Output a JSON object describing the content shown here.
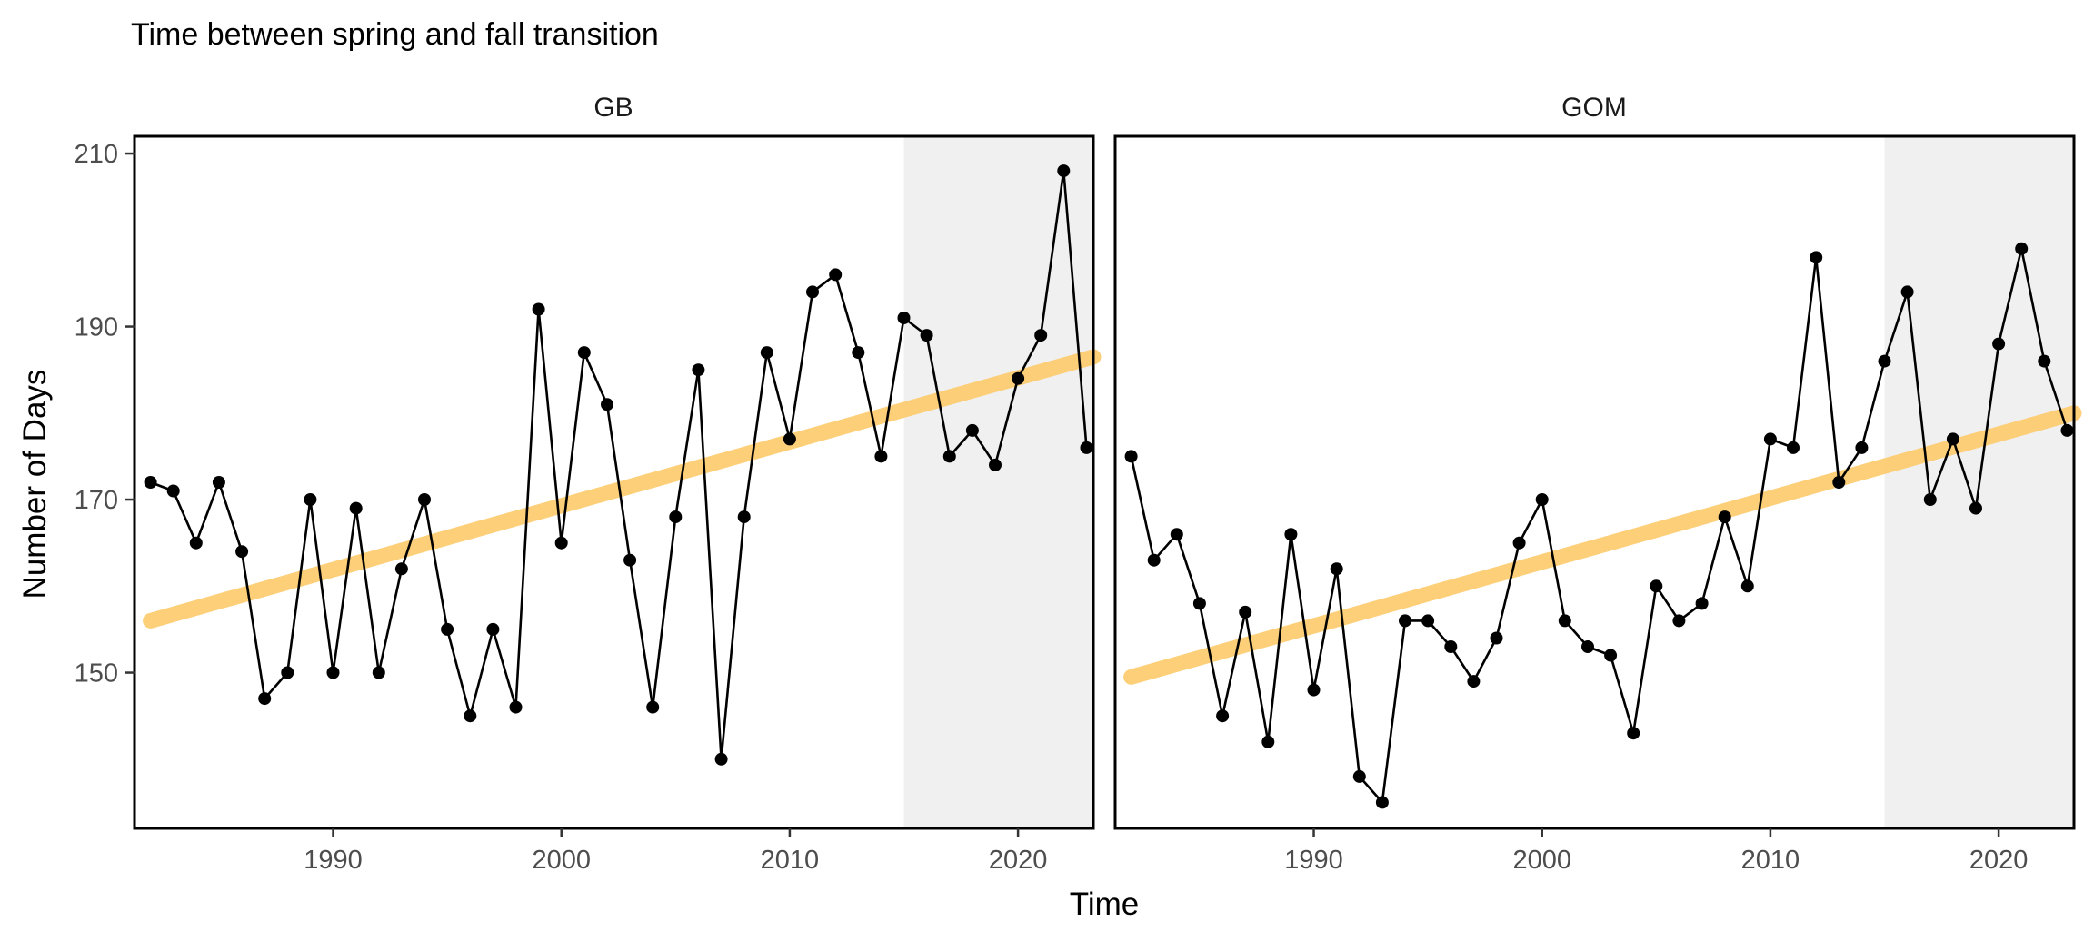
{
  "chart_data": {
    "type": "line",
    "title": "Time between spring and fall transition",
    "xlabel": "Time",
    "ylabel": "Number of Days",
    "xlim": [
      1981.3,
      2023.3
    ],
    "ylim": [
      132,
      212
    ],
    "x_ticks": [
      "1990",
      "2000",
      "2010",
      "2020"
    ],
    "y_ticks": [
      "150",
      "170",
      "190",
      "210"
    ],
    "grid": false,
    "shaded_period": [
      2015,
      2023.3
    ],
    "colors": {
      "line": "#000000",
      "trend": "#fdca6a",
      "shade": "#f0f0f0",
      "border": "#000000"
    },
    "panels": [
      {
        "strip_label": "GB",
        "x": [
          1982,
          1983,
          1984,
          1985,
          1986,
          1987,
          1988,
          1989,
          1990,
          1991,
          1992,
          1993,
          1994,
          1995,
          1996,
          1997,
          1998,
          1999,
          2000,
          2001,
          2002,
          2003,
          2004,
          2005,
          2006,
          2007,
          2008,
          2009,
          2010,
          2011,
          2012,
          2013,
          2014,
          2015,
          2016,
          2017,
          2018,
          2019,
          2020,
          2021,
          2022,
          2023
        ],
        "values": [
          172,
          171,
          165,
          172,
          164,
          147,
          150,
          170,
          150,
          169,
          150,
          162,
          170,
          155,
          145,
          155,
          146,
          192,
          165,
          187,
          181,
          163,
          146,
          168,
          185,
          140,
          168,
          187,
          177,
          194,
          196,
          187,
          175,
          191,
          189,
          175,
          178,
          174,
          184,
          189,
          208,
          176
        ],
        "trend": {
          "x": [
            1982,
            2023.3
          ],
          "y": [
            156,
            186.5
          ]
        }
      },
      {
        "strip_label": "GOM",
        "x": [
          1982,
          1983,
          1984,
          1985,
          1986,
          1987,
          1988,
          1989,
          1990,
          1991,
          1992,
          1993,
          1994,
          1995,
          1996,
          1997,
          1998,
          1999,
          2000,
          2001,
          2002,
          2003,
          2004,
          2005,
          2006,
          2007,
          2008,
          2009,
          2010,
          2011,
          2012,
          2013,
          2014,
          2015,
          2016,
          2017,
          2018,
          2019,
          2020,
          2021,
          2022,
          2023
        ],
        "values": [
          175,
          163,
          166,
          158,
          145,
          157,
          142,
          166,
          148,
          162,
          138,
          135,
          156,
          156,
          153,
          149,
          154,
          165,
          170,
          156,
          153,
          152,
          143,
          160,
          156,
          158,
          168,
          160,
          177,
          176,
          198,
          172,
          176,
          186,
          194,
          170,
          177,
          169,
          188,
          199,
          186,
          178
        ],
        "trend": {
          "x": [
            1982,
            2023.3
          ],
          "y": [
            149.5,
            180
          ]
        }
      }
    ]
  }
}
